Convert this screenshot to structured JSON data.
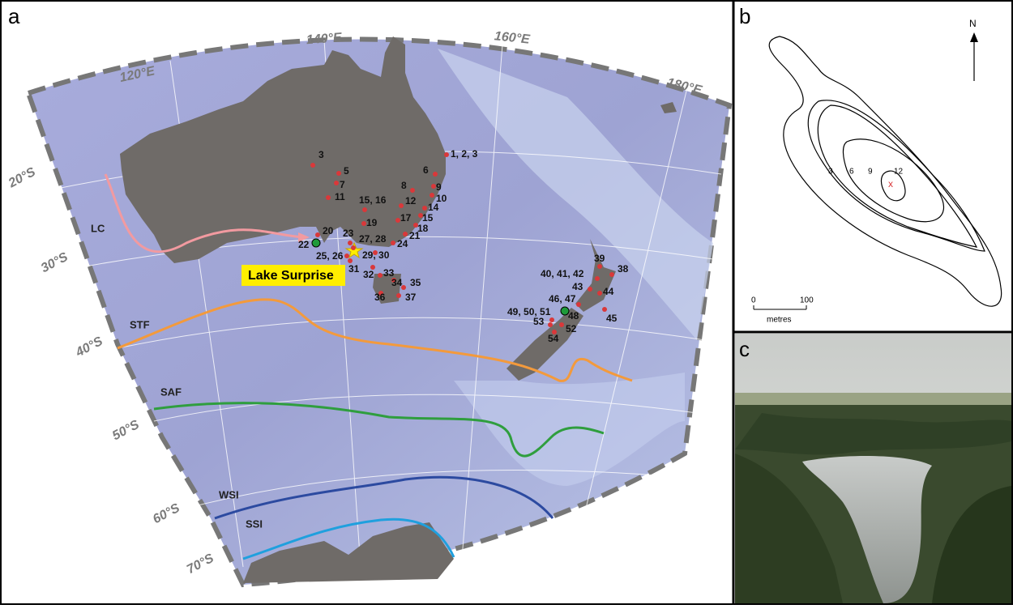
{
  "panels": {
    "a": {
      "label": "a",
      "longitudes": [
        "120°E",
        "140°E",
        "160°E",
        "180°E"
      ],
      "latitudes": [
        "20°S",
        "30°S",
        "40°S",
        "50°S",
        "60°S",
        "70°S"
      ],
      "fronts": [
        "LC",
        "STF",
        "SAF",
        "WSI",
        "SSI"
      ],
      "lake": "Lake Surprise",
      "sites": [
        "1, 2, 3",
        "3",
        "5",
        "6",
        "7",
        "8",
        "9",
        "10",
        "11",
        "12",
        "15, 16",
        "14",
        "15",
        "17",
        "18",
        "19",
        "20",
        "21",
        "22",
        "23",
        "27, 28",
        "24",
        "25, 26",
        "29, 30",
        "31",
        "32",
        "33",
        "34",
        "35",
        "36",
        "37",
        "38",
        "39",
        "40, 41, 42",
        "43",
        "44",
        "45",
        "46, 47",
        "48",
        "49, 50, 51",
        "53",
        "52",
        "54"
      ]
    },
    "b": {
      "label": "b",
      "north": "N",
      "contours": [
        "3",
        "6",
        "9",
        "12"
      ],
      "core": "x",
      "scale": [
        "0",
        "100"
      ],
      "scale_unit": "metres"
    },
    "c": {
      "label": "c"
    }
  }
}
